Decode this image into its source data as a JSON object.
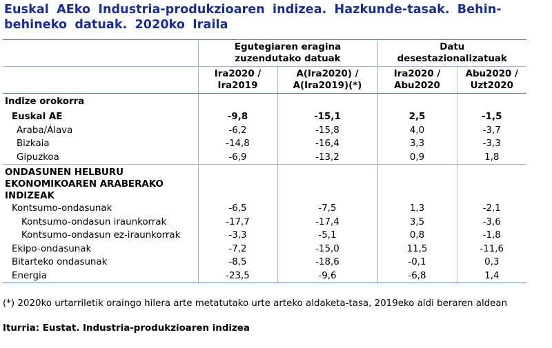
{
  "title": "Euskal AEko Industria-produkzioaren indizea. Hazkunde-tasak. Behin-behineko datuak. 2020ko Iraila",
  "headers": {
    "group1": "Egutegiaren eragina zuzendutako datuak",
    "group2_line1": "Datu",
    "group2_line2": "desestazionalizatuak",
    "col1_line1": "Ira2020 /",
    "col1_line2": "Ira2019",
    "col2_line1": "A(Ira2020) /",
    "col2_line2": "A(Ira2019)(*)",
    "col3_line1": "Ira2020 /",
    "col3_line2": "Abu2020",
    "col4_line1": "Abu2020 /",
    "col4_line2": "Uzt2020"
  },
  "section1": {
    "title": "Indize orokorra",
    "rows": [
      {
        "label": "Euskal AE",
        "v1": "-9,8",
        "v2": "-15,1",
        "v3": "2,5",
        "v4": "-1,5"
      },
      {
        "label": "Araba/Álava",
        "v1": "-6,2",
        "v2": "-15,8",
        "v3": "4,0",
        "v4": "-3,7"
      },
      {
        "label": "Bizkaia",
        "v1": "-14,8",
        "v2": "-16,4",
        "v3": "3,3",
        "v4": "-3,3"
      },
      {
        "label": "Gipuzkoa",
        "v1": "-6,9",
        "v2": "-13,2",
        "v3": "0,9",
        "v4": "1,8"
      }
    ]
  },
  "section2": {
    "title_line1": "ONDASUNEN HELBURU",
    "title_line2": "EKONOMIKOAREN ARABERAKO",
    "title_line3": "INDIZEAK",
    "rows": [
      {
        "label": "Kontsumo-ondasunak",
        "v1": "-6,5",
        "v2": "-7,5",
        "v3": "1,3",
        "v4": "-2,1"
      },
      {
        "label": "Kontsumo-ondasun iraunkorrak",
        "v1": "-17,7",
        "v2": "-17,4",
        "v3": "3,5",
        "v4": "-3,6"
      },
      {
        "label": "Kontsumo-ondasun ez-iraunkorrak",
        "v1": "-3,3",
        "v2": "-5,1",
        "v3": "0,8",
        "v4": "-1,8"
      },
      {
        "label": "Ekipo-ondasunak",
        "v1": "-7,2",
        "v2": "-15,0",
        "v3": "11,5",
        "v4": "-11,6"
      },
      {
        "label": "Bitarteko ondasunak",
        "v1": "-8,5",
        "v2": "-18,6",
        "v3": "-0,1",
        "v4": "0,3"
      },
      {
        "label": "Energia",
        "v1": "-23,5",
        "v2": "-9,6",
        "v3": "-6,8",
        "v4": "1,4"
      }
    ]
  },
  "footnote": "(*) 2020ko urtarriletik oraingo hilera arte metatutako urte arteko aldaketa-tasa, 2019eko aldi beraren aldean",
  "source": "Iturria: Eustat. Industria-produkzioaren indizea"
}
